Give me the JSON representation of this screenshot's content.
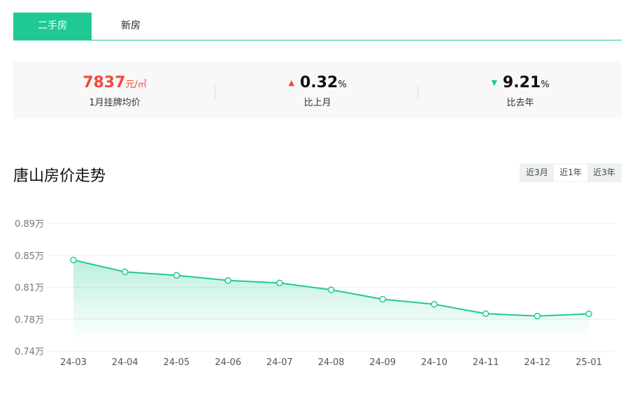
{
  "tabs": [
    {
      "label": "二手房",
      "active": true
    },
    {
      "label": "新房",
      "active": false
    }
  ],
  "stats": {
    "price": {
      "value": "7837",
      "unit": "元/㎡",
      "label": "1月挂牌均价",
      "color": "#f5483b"
    },
    "mom": {
      "value": "0.32",
      "unit": "%",
      "label": "比上月",
      "direction": "up",
      "icon": "triangle-up-icon",
      "color": "#f5483b"
    },
    "yoy": {
      "value": "9.21",
      "unit": "%",
      "label": "比去年",
      "direction": "down",
      "icon": "triangle-down-icon",
      "color": "#20c994"
    }
  },
  "section_title": "唐山房价走势",
  "ranges": [
    {
      "label": "近3月",
      "active": false
    },
    {
      "label": "近1年",
      "active": true
    },
    {
      "label": "近3年",
      "active": false
    }
  ],
  "chart_data": {
    "type": "area",
    "categories": [
      "24-03",
      "24-04",
      "24-05",
      "24-06",
      "24-07",
      "24-08",
      "24-09",
      "24-10",
      "24-11",
      "24-12",
      "25-01"
    ],
    "values": [
      0.847,
      0.833,
      0.829,
      0.823,
      0.82,
      0.812,
      0.801,
      0.795,
      0.784,
      0.7812,
      0.7837
    ],
    "unit": "万",
    "ylim": [
      0.74,
      0.89
    ],
    "yticks": [
      "0.74万",
      "0.78万",
      "0.81万",
      "0.85万",
      "0.89万"
    ],
    "grid": true,
    "color": "#20c994"
  }
}
